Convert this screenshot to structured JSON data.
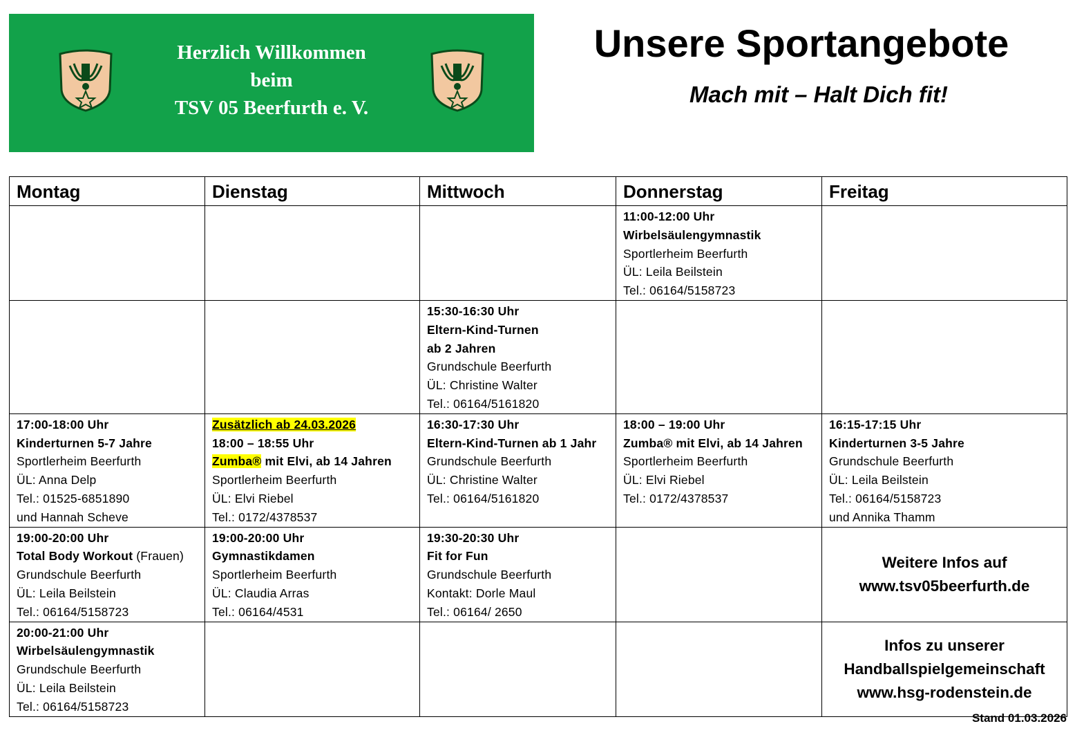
{
  "banner": {
    "lines": [
      "Herzlich Willkommen",
      "beim",
      "TSV 05 Beerfurth e. V."
    ],
    "background": "#12a24a"
  },
  "header": {
    "title": "Unsere Sportangebote",
    "subtitle": "Mach mit – Halt Dich fit!"
  },
  "schedule": {
    "days": [
      "Montag",
      "Dienstag",
      "Mittwoch",
      "Donnerstag",
      "Freitag"
    ],
    "rows": [
      {
        "height": 135,
        "cells": [
          [],
          [],
          [],
          [
            [
              {
                "t": "11:00-12:00 Uhr",
                "b": true
              }
            ],
            [
              {
                "t": "Wirbelsäulengymnastik",
                "b": true
              }
            ],
            [
              {
                "t": "Sportlerheim Beerfurth"
              }
            ],
            [
              {
                "t": "ÜL: Leila Beilstein"
              }
            ],
            [
              {
                "t": "Tel.: 06164/5158723"
              }
            ]
          ],
          []
        ]
      },
      {
        "height": 162,
        "cells": [
          [],
          [],
          [
            [
              {
                "t": "15:30-16:30 Uhr",
                "b": true
              }
            ],
            [
              {
                "t": "Eltern-Kind-Turnen",
                "b": true
              }
            ],
            [
              {
                "t": "ab 2 Jahren",
                "b": true
              }
            ],
            [
              {
                "t": "Grundschule Beerfurth"
              }
            ],
            [
              {
                "t": "ÜL: Christine Walter"
              }
            ],
            [
              {
                "t": "Tel.: 06164/5161820"
              }
            ]
          ],
          [],
          []
        ]
      },
      {
        "height": 163,
        "cells": [
          [
            [
              {
                "t": "17:00-18:00 Uhr",
                "b": true
              }
            ],
            [
              {
                "t": "Kinderturnen 5-7 Jahre",
                "b": true
              }
            ],
            [
              {
                "t": "Sportlerheim Beerfurth"
              }
            ],
            [
              {
                "t": "ÜL: Anna Delp"
              }
            ],
            [
              {
                "t": "Tel.: 01525-6851890"
              }
            ],
            [
              {
                "t": "und Hannah Scheve"
              }
            ]
          ],
          [
            [
              {
                "t": "Zusätzlich ab 24.03.2026",
                "b": true,
                "hl": true,
                "u": true
              }
            ],
            [
              {
                "t": "18:00 – 18:55 Uhr",
                "b": true
              }
            ],
            [
              {
                "t": " Zumba®",
                "b": true,
                "hl": true
              },
              {
                "t": " mit Elvi, ab 14 Jahren",
                "b": true
              }
            ],
            [
              {
                "t": "Sportlerheim Beerfurth"
              }
            ],
            [
              {
                "t": "ÜL: Elvi Riebel"
              }
            ],
            [
              {
                "t": "Tel.: 0172/4378537"
              }
            ]
          ],
          [
            [
              {
                "t": "16:30-17:30 Uhr",
                "b": true
              }
            ],
            [
              {
                "t": "Eltern-Kind-Turnen ab 1 Jahr",
                "b": true
              }
            ],
            [
              {
                "t": "Grundschule Beerfurth"
              }
            ],
            [
              {
                "t": "ÜL: Christine Walter"
              }
            ],
            [
              {
                "t": "Tel.: 06164/5161820"
              }
            ]
          ],
          [
            [
              {
                "t": "18:00 – 19:00 Uhr",
                "b": true
              }
            ],
            [
              {
                "t": "Zumba® mit Elvi, ab 14 Jahren",
                "b": true
              }
            ],
            [
              {
                "t": "Sportlerheim Beerfurth"
              }
            ],
            [
              {
                "t": "ÜL: Elvi Riebel"
              }
            ],
            [
              {
                "t": "Tel.: 0172/4378537"
              }
            ]
          ],
          [
            [
              {
                "t": "16:15-17:15 Uhr",
                "b": true
              }
            ],
            [
              {
                "t": "Kinderturnen 3-5 Jahre",
                "b": true
              }
            ],
            [
              {
                "t": "Grundschule Beerfurth"
              }
            ],
            [
              {
                "t": "ÜL: Leila Beilstein"
              }
            ],
            [
              {
                "t": "Tel.: 06164/5158723"
              }
            ],
            [
              {
                "t": "und Annika Thamm"
              }
            ]
          ]
        ]
      },
      {
        "height": 135,
        "cells": [
          [
            [
              {
                "t": "19:00-20:00 Uhr",
                "b": true
              }
            ],
            [
              {
                "t": "Total Body Workout",
                "b": true
              },
              {
                "t": " (Frauen)"
              }
            ],
            [
              {
                "t": "Grundschule Beerfurth"
              }
            ],
            [
              {
                "t": "ÜL: Leila Beilstein"
              }
            ],
            [
              {
                "t": "Tel.: 06164/5158723"
              }
            ]
          ],
          [
            [
              {
                "t": "19:00-20:00 Uhr",
                "b": true
              }
            ],
            [
              {
                "t": "Gymnastikdamen",
                "b": true
              }
            ],
            [
              {
                "t": "Sportlerheim Beerfurth"
              }
            ],
            [
              {
                "t": "ÜL: Claudia Arras"
              }
            ],
            [
              {
                "t": "Tel.:  06164/4531"
              }
            ]
          ],
          [
            [
              {
                "t": "19:30-20:30 Uhr",
                "b": true
              }
            ],
            [
              {
                "t": "Fit for Fun",
                "b": true
              }
            ],
            [
              {
                "t": "Grundschule Beerfurth"
              }
            ],
            [
              {
                "t": "Kontakt: Dorle Maul"
              }
            ],
            [
              {
                "t": "Tel.: 06164/ 2650"
              }
            ]
          ],
          [],
          {
            "info": [
              "Weitere Infos auf",
              "www.tsv05beerfurth.de"
            ]
          }
        ]
      },
      {
        "height": 135,
        "cells": [
          [
            [
              {
                "t": "20:00-21:00 Uhr",
                "b": true
              }
            ],
            [
              {
                "t": "Wirbelsäulengymnastik",
                "b": true
              }
            ],
            [
              {
                "t": "Grundschule Beerfurth"
              }
            ],
            [
              {
                "t": "ÜL: Leila Beilstein"
              }
            ],
            [
              {
                "t": "Tel.: 06164/5158723"
              }
            ]
          ],
          [],
          [],
          [],
          {
            "info": [
              "Infos zu unserer",
              "Handballspielgemeinschaft",
              "www.hsg-rodenstein.de"
            ]
          }
        ]
      }
    ]
  },
  "footer": {
    "stand": "Stand 01.03.2026"
  }
}
